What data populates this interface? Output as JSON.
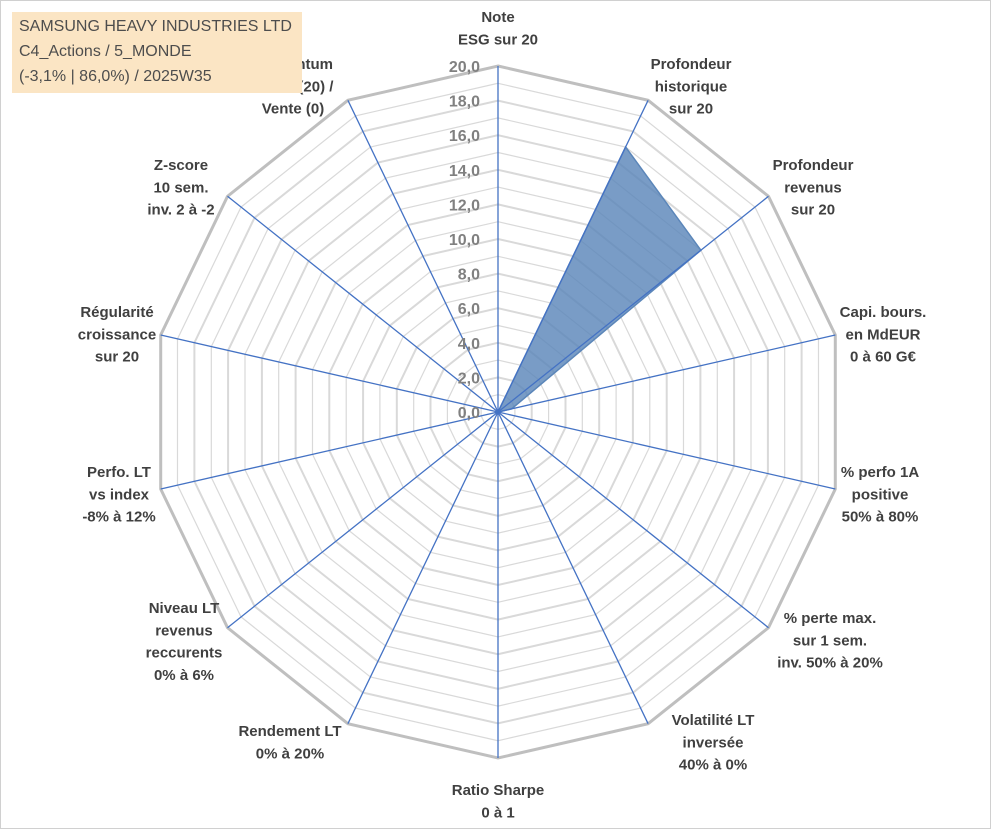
{
  "info_box": {
    "line1": "SAMSUNG HEAVY INDUSTRIES LTD",
    "line2": "C4_Actions / 5_MONDE",
    "line3": "(-3,1% | 86,0%) / 2025W35"
  },
  "chart_data": {
    "type": "radar",
    "title": "",
    "axes": [
      [
        "Note",
        "ESG sur 20"
      ],
      [
        "Profondeur",
        "historique",
        "sur 20"
      ],
      [
        "Profondeur",
        "revenus",
        "sur 20"
      ],
      [
        "Capi. bours.",
        "en MdEUR",
        "0 à 60 G€"
      ],
      [
        "% perfo 1A",
        "positive",
        "50% à 80%"
      ],
      [
        "% perte max.",
        "sur 1 sem.",
        "inv. 50% à 20%"
      ],
      [
        "Volatilité LT",
        "inversée",
        "40% à 0%"
      ],
      [
        "Ratio Sharpe",
        "0 à 1"
      ],
      [
        "Rendement LT",
        "0% à 20%"
      ],
      [
        "Niveau LT",
        "revenus",
        "reccurents",
        "0% à 6%"
      ],
      [
        "Perfo. LT",
        "vs index",
        "-8% à 12%"
      ],
      [
        "Régularité",
        "croissance",
        "sur 20"
      ],
      [
        "Z-score",
        "10 sem.",
        "inv. 2 à -2"
      ],
      [
        "Momentum",
        "Achat (20) /",
        "Vente (0)"
      ]
    ],
    "ticks": [
      "0,0",
      "2,0",
      "4,0",
      "6,0",
      "8,0",
      "10,0",
      "12,0",
      "14,0",
      "16,0",
      "18,0",
      "20,0"
    ],
    "rlim": [
      0,
      20
    ],
    "series": [
      {
        "values": [
          0,
          17.0,
          15.0,
          0.8,
          0,
          0,
          0,
          0,
          0,
          0,
          0,
          0,
          0,
          0
        ],
        "color": "#5b86b9"
      }
    ],
    "colors": {
      "fill": "#5b86b9",
      "spoke": "#4472c4",
      "grid": "#d9d9d9",
      "outer_grid": "#bfbfbf"
    }
  }
}
